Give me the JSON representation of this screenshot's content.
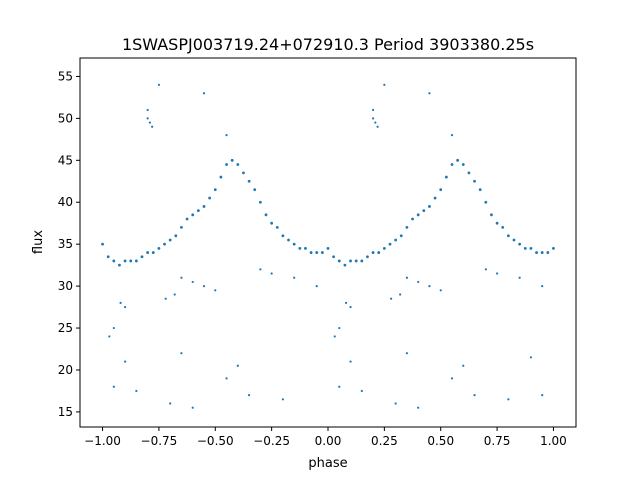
{
  "chart_data": {
    "type": "scatter",
    "title": "1SWASPJ003719.24+072910.3 Period 3903380.25s",
    "xlabel": "phase",
    "ylabel": "flux",
    "xlim": [
      -1.1,
      1.1
    ],
    "ylim": [
      13.2,
      57.2
    ],
    "xticks": [
      -1.0,
      -0.75,
      -0.5,
      -0.25,
      0.0,
      0.25,
      0.5,
      0.75,
      1.0
    ],
    "xtick_labels": [
      "−1.00",
      "−0.75",
      "−0.50",
      "−0.25",
      "0.00",
      "0.25",
      "0.50",
      "0.75",
      "1.00"
    ],
    "yticks": [
      15,
      20,
      25,
      30,
      35,
      40,
      45,
      50,
      55
    ],
    "ytick_labels": [
      "15",
      "20",
      "25",
      "30",
      "35",
      "40",
      "45",
      "50",
      "55"
    ],
    "grid": false,
    "point_color": "#1f77b4",
    "series": [
      {
        "x": [
          -1.0,
          -0.975,
          -0.95,
          -0.925,
          -0.9,
          -0.875,
          -0.85,
          -0.825,
          -0.8,
          -0.775,
          -0.75,
          -0.725,
          -0.7,
          -0.675,
          -0.65,
          -0.625,
          -0.6,
          -0.575,
          -0.55,
          -0.525,
          -0.5,
          -0.475,
          -0.45,
          -0.425,
          -0.4,
          -0.375,
          -0.35,
          -0.325,
          -0.3,
          -0.275,
          -0.25,
          -0.225,
          -0.2,
          -0.175,
          -0.15,
          -0.125,
          -0.1,
          -0.075,
          -0.05,
          -0.025,
          0.0,
          0.025,
          0.05,
          0.075,
          0.1,
          0.125,
          0.15,
          0.175,
          0.2,
          0.225,
          0.25,
          0.275,
          0.3,
          0.325,
          0.35,
          0.375,
          0.4,
          0.425,
          0.45,
          0.475,
          0.5,
          0.525,
          0.55,
          0.575,
          0.6,
          0.625,
          0.65,
          0.675,
          0.7,
          0.725,
          0.75,
          0.775,
          0.8,
          0.825,
          0.85,
          0.875,
          0.9,
          0.925,
          0.95,
          0.975,
          1.0
        ],
        "y": [
          35.0,
          33.5,
          33.0,
          32.5,
          33.0,
          33.0,
          33.0,
          33.5,
          34.0,
          34.0,
          34.5,
          35.0,
          35.5,
          36.0,
          37.0,
          38.0,
          38.5,
          39.0,
          39.5,
          40.5,
          41.5,
          43.0,
          44.5,
          45.0,
          44.5,
          43.5,
          42.5,
          41.5,
          40.0,
          38.5,
          37.5,
          37.0,
          36.0,
          35.5,
          35.0,
          34.5,
          34.5,
          34.0,
          34.0,
          34.0,
          34.5,
          33.5,
          33.0,
          32.5,
          33.0,
          33.0,
          33.0,
          33.5,
          34.0,
          34.0,
          34.5,
          35.0,
          35.5,
          36.0,
          37.0,
          38.0,
          38.5,
          39.0,
          39.5,
          40.5,
          41.5,
          43.0,
          44.5,
          45.0,
          44.5,
          43.5,
          42.5,
          41.5,
          40.0,
          38.5,
          37.5,
          37.0,
          36.0,
          35.5,
          35.0,
          34.5,
          34.5,
          34.0,
          34.0,
          34.0,
          34.5
        ]
      }
    ],
    "extra_points": {
      "x": [
        -0.8,
        -0.8,
        -0.79,
        -0.78,
        -0.92,
        -0.9,
        -0.95,
        -0.97,
        -0.72,
        -0.68,
        -0.65,
        -0.6,
        -0.55,
        -0.5,
        -0.45,
        -0.3,
        -0.25,
        -0.15,
        -0.05,
        0.2,
        0.2,
        0.21,
        0.22,
        0.08,
        0.1,
        0.05,
        0.03,
        0.28,
        0.32,
        0.35,
        0.4,
        0.45,
        0.5,
        0.55,
        0.7,
        0.75,
        0.85,
        0.95,
        -0.95,
        -0.85,
        -0.7,
        -0.6,
        -0.45,
        -0.35,
        -0.2,
        0.05,
        0.15,
        0.3,
        0.4,
        0.55,
        0.65,
        0.8,
        0.95,
        -0.9,
        -0.65,
        -0.4,
        0.1,
        0.35,
        0.6,
        0.9,
        -0.75,
        -0.55,
        0.25,
        0.45
      ],
      "y": [
        51.0,
        50.0,
        49.5,
        49.0,
        28.0,
        27.5,
        25.0,
        24.0,
        28.5,
        29.0,
        31.0,
        30.5,
        30.0,
        29.5,
        48.0,
        32.0,
        31.5,
        31.0,
        30.0,
        51.0,
        50.0,
        49.5,
        49.0,
        28.0,
        27.5,
        25.0,
        24.0,
        28.5,
        29.0,
        31.0,
        30.5,
        30.0,
        29.5,
        48.0,
        32.0,
        31.5,
        31.0,
        30.0,
        18.0,
        17.5,
        16.0,
        15.5,
        19.0,
        17.0,
        16.5,
        18.0,
        17.5,
        16.0,
        15.5,
        19.0,
        17.0,
        16.5,
        17.0,
        21.0,
        22.0,
        20.5,
        21.0,
        22.0,
        20.5,
        21.5,
        54.0,
        53.0,
        54.0,
        53.0
      ]
    }
  }
}
